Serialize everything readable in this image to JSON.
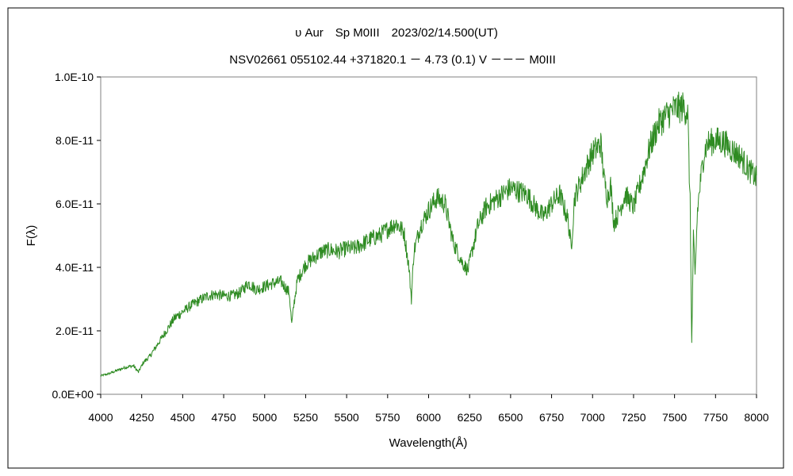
{
  "chart_data": {
    "type": "line",
    "title": "υ Aur　Sp M0III　2023/02/14.500(UT)",
    "subtitle": "NSV02661 055102.44 +371820.1 － 4.73 (0.1) V －－－ M0III",
    "xlabel": "Wavelength(Å)",
    "ylabel": "F(λ)",
    "xlim": [
      4000,
      8000
    ],
    "ylim": [
      0,
      1e-10
    ],
    "xticks": [
      4000,
      4250,
      4500,
      4750,
      5000,
      5250,
      5500,
      5750,
      6000,
      6250,
      6500,
      6750,
      7000,
      7250,
      7500,
      7750,
      8000
    ],
    "xtick_labels": [
      "4000",
      "4250",
      "4500",
      "4750",
      "5000",
      "5250",
      "5500",
      "5750",
      "6000",
      "6250",
      "6500",
      "6750",
      "7000",
      "7250",
      "7500",
      "7750",
      "8000"
    ],
    "yticks": [
      0,
      2e-11,
      4e-11,
      6e-11,
      8e-11,
      1e-10
    ],
    "ytick_labels": [
      "0.0E+00",
      "2.0E-11",
      "4.0E-11",
      "6.0E-11",
      "8.0E-11",
      "1.0E-10"
    ],
    "grid": false,
    "legend": "none",
    "series": [
      {
        "color": "#2e8b22",
        "x": [
          4000,
          4050,
          4100,
          4150,
          4200,
          4230,
          4260,
          4300,
          4350,
          4400,
          4450,
          4500,
          4550,
          4600,
          4650,
          4700,
          4750,
          4800,
          4850,
          4900,
          4950,
          5000,
          5050,
          5100,
          5150,
          5165,
          5180,
          5200,
          5250,
          5300,
          5350,
          5400,
          5450,
          5500,
          5550,
          5600,
          5650,
          5700,
          5750,
          5800,
          5850,
          5880,
          5895,
          5910,
          5950,
          6000,
          6050,
          6100,
          6150,
          6200,
          6240,
          6260,
          6300,
          6350,
          6400,
          6450,
          6500,
          6550,
          6600,
          6650,
          6700,
          6750,
          6800,
          6850,
          6870,
          6890,
          6950,
          7000,
          7050,
          7070,
          7090,
          7110,
          7130,
          7150,
          7200,
          7250,
          7300,
          7350,
          7400,
          7450,
          7500,
          7550,
          7580,
          7595,
          7605,
          7615,
          7625,
          7640,
          7660,
          7680,
          7700,
          7750,
          7800,
          7850,
          7900,
          7950,
          8000
        ],
        "y": [
          5.8e-12,
          6.5e-12,
          7.5e-12,
          8.5e-12,
          9e-12,
          7e-12,
          1e-11,
          1.2e-11,
          1.6e-11,
          2e-11,
          2.4e-11,
          2.6e-11,
          2.8e-11,
          2.95e-11,
          3.1e-11,
          3.15e-11,
          3.1e-11,
          3.1e-11,
          3.2e-11,
          3.5e-11,
          3.3e-11,
          3.4e-11,
          3.5e-11,
          3.55e-11,
          3.2e-11,
          2.2e-11,
          2.9e-11,
          3.6e-11,
          4.1e-11,
          4.3e-11,
          4.5e-11,
          4.55e-11,
          4.5e-11,
          4.6e-11,
          4.6e-11,
          4.75e-11,
          4.9e-11,
          5e-11,
          5.2e-11,
          5.4e-11,
          5.1e-11,
          4e-11,
          3e-11,
          4.5e-11,
          5.3e-11,
          5.8e-11,
          6.2e-11,
          6e-11,
          4.8e-11,
          4.2e-11,
          3.9e-11,
          4.4e-11,
          5.3e-11,
          5.9e-11,
          6.1e-11,
          6.3e-11,
          6.5e-11,
          6.4e-11,
          6.3e-11,
          5.9e-11,
          5.6e-11,
          6e-11,
          6.3e-11,
          5.5e-11,
          4.6e-11,
          6.2e-11,
          7e-11,
          7.6e-11,
          7.9e-11,
          6.8e-11,
          6.2e-11,
          6.6e-11,
          5.4e-11,
          5.6e-11,
          6.3e-11,
          5.9e-11,
          6.8e-11,
          7.8e-11,
          8.5e-11,
          8.8e-11,
          9e-11,
          9.05e-11,
          8.9e-11,
          6e-11,
          1.6e-11,
          5e-11,
          3.7e-11,
          5.8e-11,
          6.8e-11,
          7.6e-11,
          7.9e-11,
          8e-11,
          7.95e-11,
          7.7e-11,
          7.5e-11,
          7.1e-11,
          6.8e-11
        ]
      }
    ]
  }
}
